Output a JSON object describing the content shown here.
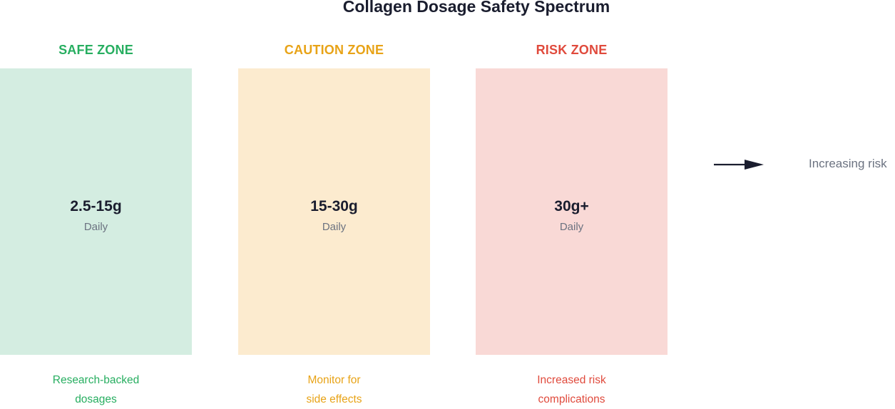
{
  "title": "Collagen Dosage Safety Spectrum",
  "zones": [
    {
      "heading": "SAFE ZONE",
      "amount": "2.5-15g",
      "frequency": "Daily",
      "note_line1": "Research-backed",
      "note_line2": "dosages",
      "accent_color": "#27ae60",
      "box_color": "#d4ede1"
    },
    {
      "heading": "CAUTION ZONE",
      "amount": "15-30g",
      "frequency": "Daily",
      "note_line1": "Monitor for",
      "note_line2": "side effects",
      "accent_color": "#e8a317",
      "box_color": "#fcebcf"
    },
    {
      "heading": "RISK ZONE",
      "amount": "30g+",
      "frequency": "Daily",
      "note_line1": "Increased risk",
      "note_line2": "complications",
      "accent_color": "#e04a3c",
      "box_color": "#f9d9d6"
    }
  ],
  "legend": {
    "icon": "arrow-right-icon",
    "label": "Increasing risk",
    "color": "#1a1d2e"
  }
}
